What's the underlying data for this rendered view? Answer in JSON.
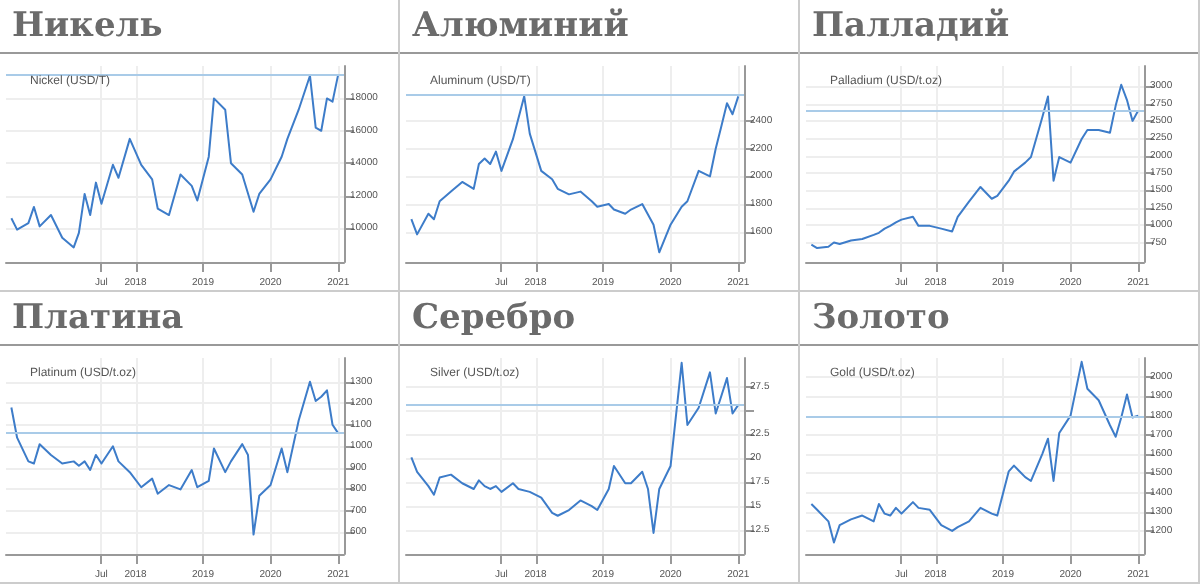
{
  "chart_data": [
    {
      "type": "line",
      "title": "Никель",
      "subtitle": "Nickel (USD/T)",
      "color": "#3d7cc9",
      "grid": true,
      "x": [
        "2016-03",
        "2016-04",
        "2016-06",
        "2016-07",
        "2016-08",
        "2016-10",
        "2016-12",
        "2017-02",
        "2017-03",
        "2017-04",
        "2017-05",
        "2017-06",
        "2017-07",
        "2017-09",
        "2017-10",
        "2017-12",
        "2018-02",
        "2018-04",
        "2018-05",
        "2018-07",
        "2018-09",
        "2018-11",
        "2018-12",
        "2019-02",
        "2019-03",
        "2019-05",
        "2019-06",
        "2019-08",
        "2019-10",
        "2019-11",
        "2020-01",
        "2020-03",
        "2020-04",
        "2020-06",
        "2020-08",
        "2020-09",
        "2020-10",
        "2020-11",
        "2020-12",
        "2021-01"
      ],
      "values": [
        10600,
        9900,
        10300,
        11300,
        10100,
        10800,
        9400,
        8800,
        9700,
        12100,
        10800,
        12800,
        11500,
        13900,
        13100,
        15500,
        13900,
        13000,
        11200,
        10800,
        13300,
        12600,
        11700,
        14400,
        18000,
        17300,
        14000,
        13300,
        11000,
        12100,
        13000,
        14400,
        15500,
        17300,
        19400,
        16200,
        16000,
        18000,
        17800,
        19500
      ],
      "xlim": [
        "2016-02",
        "2021-02"
      ],
      "xticks": [
        {
          "value": "2017-07",
          "label": "Jul"
        },
        {
          "value": "2018-01",
          "label": "2018"
        },
        {
          "value": "2019-01",
          "label": "2019"
        },
        {
          "value": "2020-01",
          "label": "2020"
        },
        {
          "value": "2021-01",
          "label": "2021"
        }
      ],
      "ylim": [
        7900,
        20000
      ],
      "yticks": [
        10000,
        12000,
        14000,
        16000,
        18000
      ],
      "ref_lines": [
        {
          "axis": "y",
          "value": 19500,
          "color": "#a9cbe8"
        }
      ]
    },
    {
      "type": "line",
      "title": "Алюминий",
      "subtitle": "Aluminum (USD/T)",
      "color": "#3d7cc9",
      "grid": true,
      "x": [
        "2016-03",
        "2016-04",
        "2016-06",
        "2016-07",
        "2016-08",
        "2016-10",
        "2016-12",
        "2017-02",
        "2017-03",
        "2017-04",
        "2017-05",
        "2017-06",
        "2017-07",
        "2017-09",
        "2017-11",
        "2017-12",
        "2018-02",
        "2018-04",
        "2018-05",
        "2018-07",
        "2018-09",
        "2018-11",
        "2018-12",
        "2019-02",
        "2019-03",
        "2019-05",
        "2019-06",
        "2019-08",
        "2019-10",
        "2019-11",
        "2020-01",
        "2020-03",
        "2020-04",
        "2020-06",
        "2020-08",
        "2020-09",
        "2020-10",
        "2020-11",
        "2020-12",
        "2021-01"
      ],
      "values": [
        1690,
        1580,
        1730,
        1690,
        1820,
        1890,
        1960,
        1910,
        2090,
        2130,
        2090,
        2180,
        2040,
        2270,
        2580,
        2310,
        2040,
        1980,
        1910,
        1870,
        1890,
        1820,
        1780,
        1800,
        1760,
        1730,
        1760,
        1800,
        1650,
        1450,
        1650,
        1780,
        1820,
        2040,
        2000,
        2200,
        2360,
        2530,
        2450,
        2580
      ],
      "xlim": [
        "2016-02",
        "2021-02"
      ],
      "xticks": [
        {
          "value": "2017-07",
          "label": "Jul"
        },
        {
          "value": "2018-01",
          "label": "2018"
        },
        {
          "value": "2019-01",
          "label": "2019"
        },
        {
          "value": "2020-01",
          "label": "2020"
        },
        {
          "value": "2021-01",
          "label": "2021"
        }
      ],
      "ylim": [
        1380,
        2800
      ],
      "yticks": [
        1600,
        1800,
        2000,
        2200,
        2400
      ],
      "ref_lines": [
        {
          "axis": "y",
          "value": 2600,
          "color": "#a9cbe8"
        }
      ]
    },
    {
      "type": "line",
      "title": "Палладий",
      "subtitle": "Palladium (USD/t.oz)",
      "color": "#3d7cc9",
      "grid": true,
      "x": [
        "2016-03",
        "2016-04",
        "2016-06",
        "2016-07",
        "2016-08",
        "2016-10",
        "2016-12",
        "2017-02",
        "2017-03",
        "2017-04",
        "2017-05",
        "2017-06",
        "2017-07",
        "2017-09",
        "2017-10",
        "2017-12",
        "2018-02",
        "2018-04",
        "2018-05",
        "2018-07",
        "2018-09",
        "2018-11",
        "2018-12",
        "2019-02",
        "2019-03",
        "2019-05",
        "2019-06",
        "2019-08",
        "2019-09",
        "2019-10",
        "2019-11",
        "2020-01",
        "2020-03",
        "2020-04",
        "2020-06",
        "2020-08",
        "2020-09",
        "2020-10",
        "2020-11",
        "2020-12",
        "2021-01"
      ],
      "values": [
        720,
        670,
        690,
        750,
        730,
        780,
        800,
        860,
        890,
        950,
        990,
        1040,
        1080,
        1120,
        990,
        990,
        950,
        910,
        1120,
        1340,
        1550,
        1380,
        1420,
        1640,
        1770,
        1900,
        1980,
        2550,
        2850,
        1640,
        1980,
        1900,
        2240,
        2370,
        2370,
        2330,
        2720,
        3020,
        2800,
        2500,
        2650
      ],
      "xlim": [
        "2016-02",
        "2021-02"
      ],
      "xticks": [
        {
          "value": "2017-07",
          "label": "Jul"
        },
        {
          "value": "2018-01",
          "label": "2018"
        },
        {
          "value": "2019-01",
          "label": "2019"
        },
        {
          "value": "2020-01",
          "label": "2020"
        },
        {
          "value": "2021-01",
          "label": "2021"
        }
      ],
      "ylim": [
        470,
        3290
      ],
      "yticks": [
        750,
        1000,
        1250,
        1500,
        1750,
        2000,
        2250,
        2500,
        2750,
        3000
      ],
      "ref_lines": [
        {
          "axis": "y",
          "value": 2650,
          "color": "#a9cbe8"
        }
      ]
    },
    {
      "type": "line",
      "title": "Платина",
      "subtitle": "Platinum (USD/t.oz)",
      "color": "#3d7cc9",
      "grid": true,
      "x": [
        "2016-03",
        "2016-04",
        "2016-06",
        "2016-07",
        "2016-08",
        "2016-10",
        "2016-12",
        "2017-02",
        "2017-03",
        "2017-04",
        "2017-05",
        "2017-06",
        "2017-07",
        "2017-09",
        "2017-10",
        "2017-12",
        "2018-02",
        "2018-04",
        "2018-05",
        "2018-07",
        "2018-09",
        "2018-11",
        "2018-12",
        "2019-02",
        "2019-03",
        "2019-05",
        "2019-06",
        "2019-08",
        "2019-09",
        "2019-10",
        "2019-11",
        "2020-01",
        "2020-03",
        "2020-04",
        "2020-06",
        "2020-08",
        "2020-09",
        "2020-10",
        "2020-11",
        "2020-12",
        "2021-01"
      ],
      "values": [
        1180,
        1040,
        930,
        920,
        1010,
        960,
        920,
        930,
        910,
        930,
        890,
        960,
        920,
        1000,
        930,
        880,
        810,
        850,
        780,
        820,
        800,
        890,
        810,
        840,
        990,
        880,
        930,
        1010,
        960,
        590,
        770,
        820,
        990,
        880,
        1120,
        1300,
        1210,
        1230,
        1260,
        1100,
        1060
      ],
      "xlim": [
        "2016-02",
        "2021-02"
      ],
      "xticks": [
        {
          "value": "2017-07",
          "label": "Jul"
        },
        {
          "value": "2018-01",
          "label": "2018"
        },
        {
          "value": "2019-01",
          "label": "2019"
        },
        {
          "value": "2020-01",
          "label": "2020"
        },
        {
          "value": "2021-01",
          "label": "2021"
        }
      ],
      "ylim": [
        500,
        1410
      ],
      "yticks": [
        600,
        700,
        800,
        900,
        1000,
        1100,
        1200,
        1300
      ],
      "ref_lines": [
        {
          "axis": "y",
          "value": 1060,
          "color": "#a9cbe8"
        }
      ]
    },
    {
      "type": "line",
      "title": "Серебро",
      "subtitle": "Silver (USD/t.oz)",
      "color": "#3d7cc9",
      "grid": true,
      "x": [
        "2016-03",
        "2016-04",
        "2016-06",
        "2016-07",
        "2016-08",
        "2016-10",
        "2016-12",
        "2017-02",
        "2017-03",
        "2017-04",
        "2017-05",
        "2017-06",
        "2017-07",
        "2017-09",
        "2017-10",
        "2017-12",
        "2018-02",
        "2018-04",
        "2018-05",
        "2018-07",
        "2018-09",
        "2018-11",
        "2018-12",
        "2019-02",
        "2019-03",
        "2019-05",
        "2019-06",
        "2019-08",
        "2019-09",
        "2019-10",
        "2019-11",
        "2020-01",
        "2020-03",
        "2020-04",
        "2020-06",
        "2020-08",
        "2020-09",
        "2020-10",
        "2020-11",
        "2020-12",
        "2021-01"
      ],
      "values": [
        20.1,
        18.6,
        17.1,
        16.2,
        18.0,
        18.3,
        17.4,
        16.8,
        17.7,
        17.1,
        16.8,
        17.1,
        16.5,
        17.4,
        16.8,
        16.5,
        15.9,
        14.3,
        14.0,
        14.6,
        15.6,
        15.0,
        14.6,
        16.8,
        19.2,
        17.4,
        17.4,
        18.6,
        16.8,
        12.2,
        16.8,
        19.2,
        30.0,
        23.5,
        25.3,
        29.0,
        24.7,
        26.5,
        28.4,
        24.7,
        25.6
      ],
      "xlim": [
        "2016-02",
        "2021-02"
      ],
      "xticks": [
        {
          "value": "2017-07",
          "label": "Jul"
        },
        {
          "value": "2018-01",
          "label": "2018"
        },
        {
          "value": "2019-01",
          "label": "2019"
        },
        {
          "value": "2020-01",
          "label": "2020"
        },
        {
          "value": "2021-01",
          "label": "2021"
        }
      ],
      "ylim": [
        10,
        30.5
      ],
      "yticks": [
        12.5,
        15,
        17.5,
        20,
        22.5,
        {
          "value": 25,
          "label": null
        },
        27.5
      ],
      "ref_lines": [
        {
          "axis": "y",
          "value": 25.6,
          "color": "#a9cbe8"
        }
      ]
    },
    {
      "type": "line",
      "title": "Золото",
      "subtitle": "Gold (USD/t.oz)",
      "color": "#3d7cc9",
      "grid": true,
      "x": [
        "2016-03",
        "2016-04",
        "2016-06",
        "2016-07",
        "2016-08",
        "2016-10",
        "2016-12",
        "2017-02",
        "2017-03",
        "2017-04",
        "2017-05",
        "2017-06",
        "2017-07",
        "2017-09",
        "2017-10",
        "2017-12",
        "2018-02",
        "2018-04",
        "2018-05",
        "2018-07",
        "2018-09",
        "2018-11",
        "2018-12",
        "2019-02",
        "2019-03",
        "2019-05",
        "2019-06",
        "2019-08",
        "2019-09",
        "2019-10",
        "2019-11",
        "2020-01",
        "2020-03",
        "2020-04",
        "2020-06",
        "2020-08",
        "2020-09",
        "2020-10",
        "2020-11",
        "2020-12",
        "2021-01"
      ],
      "values": [
        1340,
        1310,
        1250,
        1140,
        1230,
        1260,
        1280,
        1250,
        1340,
        1290,
        1280,
        1320,
        1290,
        1350,
        1320,
        1310,
        1230,
        1200,
        1220,
        1250,
        1320,
        1290,
        1280,
        1510,
        1540,
        1480,
        1460,
        1600,
        1680,
        1460,
        1710,
        1800,
        2080,
        1940,
        1880,
        1750,
        1690,
        1790,
        1910,
        1790,
        1800
      ],
      "xlim": [
        "2016-02",
        "2021-02"
      ],
      "xticks": [
        {
          "value": "2017-07",
          "label": "Jul"
        },
        {
          "value": "2018-01",
          "label": "2018"
        },
        {
          "value": "2019-01",
          "label": "2019"
        },
        {
          "value": "2020-01",
          "label": "2020"
        },
        {
          "value": "2021-01",
          "label": "2021"
        }
      ],
      "ylim": [
        1080,
        2100
      ],
      "yticks": [
        1200,
        1300,
        1400,
        1500,
        1600,
        1700,
        1800,
        1900,
        2000
      ],
      "ref_lines": [
        {
          "axis": "y",
          "value": 1800,
          "color": "#a9cbe8"
        }
      ]
    }
  ]
}
